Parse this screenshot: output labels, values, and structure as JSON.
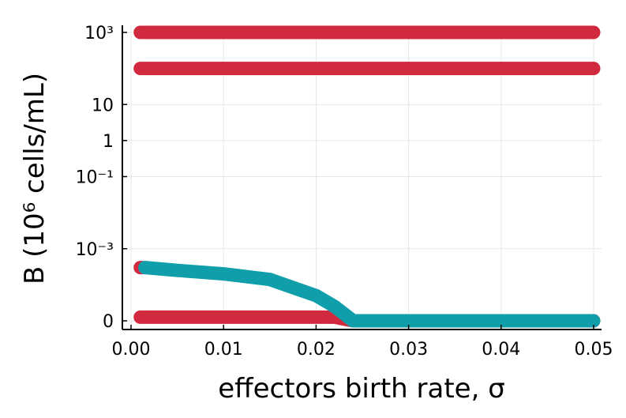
{
  "chart_data": {
    "type": "scatter",
    "xlabel": "effectors birth rate, σ",
    "ylabel": "B (10⁶ cells/mL)",
    "y_scale": "symlog",
    "grid": true,
    "legend": "none",
    "x_ticks": [
      {
        "value": 0.0,
        "label": "0.00"
      },
      {
        "value": 0.01,
        "label": "0.01"
      },
      {
        "value": 0.02,
        "label": "0.02"
      },
      {
        "value": 0.03,
        "label": "0.03"
      },
      {
        "value": 0.04,
        "label": "0.04"
      },
      {
        "value": 0.05,
        "label": "0.05"
      }
    ],
    "y_ticks": [
      {
        "value": 0,
        "label": "0"
      },
      {
        "value": 0.001,
        "label": "10⁻³"
      },
      {
        "value": 0.1,
        "label": "10⁻¹"
      },
      {
        "value": 1,
        "label": "1"
      },
      {
        "value": 10,
        "label": "10"
      },
      {
        "value": 1000,
        "label": "10³"
      }
    ],
    "xlim": [
      0.0,
      0.05
    ],
    "series": [
      {
        "color": "#d1293d",
        "segments": [
          {
            "x": [
              0.001,
              0.05
            ],
            "y": [
              1000,
              1000
            ]
          },
          {
            "x": [
              0.001,
              0.05
            ],
            "y": [
              100,
              100
            ]
          },
          {
            "x": [
              0.001,
              0.0012
            ],
            "y": [
              0.0003,
              0.0003
            ]
          },
          {
            "x": [
              0.001,
              0.005,
              0.01,
              0.015,
              0.02,
              0.022,
              0.024,
              0.05
            ],
            "y": [
              1e-05,
              1e-05,
              1e-05,
              1e-05,
              1e-05,
              1e-05,
              0.0,
              0.0
            ]
          }
        ]
      },
      {
        "color": "#0f9eaa",
        "segments": [
          {
            "x": [
              0.0015,
              0.005,
              0.01,
              0.015,
              0.02,
              0.022,
              0.024,
              0.03,
              0.04,
              0.05
            ],
            "y": [
              0.0003,
              0.00025,
              0.0002,
              0.00014,
              7e-05,
              4e-05,
              0.0,
              0.0,
              0.0,
              0.0
            ]
          }
        ]
      }
    ]
  }
}
